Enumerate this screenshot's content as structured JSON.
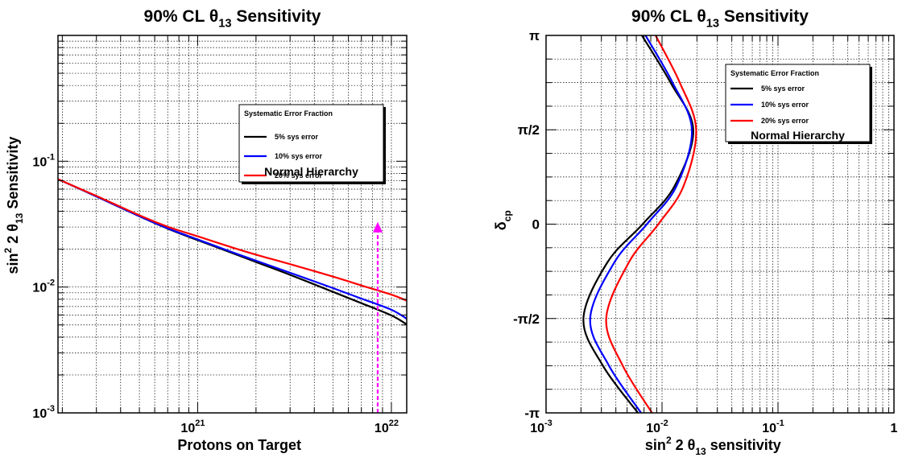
{
  "chart_data": [
    {
      "type": "line",
      "title": "90% CL θ13 Sensitivity",
      "xlabel": "Protons on Target",
      "ylabel": "sin² 2 θ13 Sensitivity",
      "xscale": "log",
      "yscale": "log",
      "xlim": [
        1.9e+20,
        1.2e+22
      ],
      "ylim": [
        0.001,
        1
      ],
      "x_ticks": [
        {
          "value": 1e+21,
          "base": "10",
          "exp": "21"
        },
        {
          "value": 1e+22,
          "base": "10",
          "exp": "22"
        }
      ],
      "y_ticks": [
        {
          "value": 0.001,
          "base": "10",
          "exp": "-3"
        },
        {
          "value": 0.01,
          "base": "10",
          "exp": "-2"
        },
        {
          "value": 0.1,
          "base": "10",
          "exp": "-1"
        }
      ],
      "grid": true,
      "legend_position": "top-right",
      "legend_title": "Systematic Error Fraction",
      "annotation": "Normal Hierarchy",
      "marker_arrow": {
        "x": 8.5e+21,
        "y_from": 0.001,
        "y_to": 0.032,
        "color": "#ff00ff"
      },
      "series": [
        {
          "name": "5% sys error",
          "color": "#000000",
          "points": [
            [
              1.9e+20,
              0.072
            ],
            [
              3e+20,
              0.0525
            ],
            [
              5e+20,
              0.0365
            ],
            [
              7e+20,
              0.0291
            ],
            [
              1e+21,
              0.0236
            ],
            [
              1.5e+21,
              0.0187
            ],
            [
              2e+21,
              0.0158
            ],
            [
              3e+21,
              0.0125
            ],
            [
              5e+21,
              0.00915
            ],
            [
              7e+21,
              0.00745
            ],
            [
              1e+22,
              0.00595
            ],
            [
              1.2e+22,
              0.00505
            ]
          ]
        },
        {
          "name": "10% sys error",
          "color": "#0000ff",
          "points": [
            [
              1.9e+20,
              0.072
            ],
            [
              3e+20,
              0.0525
            ],
            [
              5e+20,
              0.0366
            ],
            [
              7e+20,
              0.0293
            ],
            [
              1e+21,
              0.0239
            ],
            [
              1.5e+21,
              0.019
            ],
            [
              2e+21,
              0.0162
            ],
            [
              3e+21,
              0.013
            ],
            [
              5e+21,
              0.0098
            ],
            [
              7e+21,
              0.0081
            ],
            [
              1e+22,
              0.0066
            ],
            [
              1.2e+22,
              0.0056
            ]
          ]
        },
        {
          "name": "20% sys error",
          "color": "#ff0000",
          "points": [
            [
              1.9e+20,
              0.072
            ],
            [
              3e+20,
              0.053
            ],
            [
              5e+20,
              0.0372
            ],
            [
              7e+20,
              0.0302
            ],
            [
              1e+21,
              0.0253
            ],
            [
              1.5e+21,
              0.0207
            ],
            [
              2e+21,
              0.0181
            ],
            [
              3e+21,
              0.0152
            ],
            [
              5e+21,
              0.0121
            ],
            [
              7e+21,
              0.0103
            ],
            [
              1e+22,
              0.0087
            ],
            [
              1.2e+22,
              0.0078
            ]
          ]
        }
      ]
    },
    {
      "type": "line",
      "title": "90% CL θ13 Sensitivity",
      "xlabel": "sin² 2 θ13 sensitivity",
      "ylabel": "δcp",
      "xscale": "log",
      "xlim": [
        0.001,
        1
      ],
      "ylim": [
        -3.14159,
        3.14159
      ],
      "x_ticks": [
        {
          "value": 0.001,
          "base": "10",
          "exp": "-3"
        },
        {
          "value": 0.01,
          "base": "10",
          "exp": "-2"
        },
        {
          "value": 0.1,
          "base": "10",
          "exp": "-1"
        },
        {
          "value": 1,
          "base": "1",
          "exp": ""
        }
      ],
      "y_ticks": [
        {
          "value": 3.14159,
          "label": "π"
        },
        {
          "value": 1.5708,
          "label": "π/2"
        },
        {
          "value": 0,
          "label": "0"
        },
        {
          "value": -1.5708,
          "label": "-π/2"
        },
        {
          "value": -3.14159,
          "label": "-π"
        }
      ],
      "grid": true,
      "legend_position": "top-right",
      "legend_title": "Systematic Error Fraction",
      "annotation": "Normal Hierarchy",
      "series": [
        {
          "name": "5% sys error",
          "color": "#000000",
          "points": [
            [
              0.0067,
              3.14159
            ],
            [
              0.0118,
              2.36
            ],
            [
              0.0186,
              1.5708
            ],
            [
              0.0128,
              0.63
            ],
            [
              0.0068,
              0
            ],
            [
              0.0034,
              -0.63
            ],
            [
              0.0021,
              -1.5708
            ],
            [
              0.0031,
              -2.36
            ],
            [
              0.0062,
              -3.14159
            ]
          ]
        },
        {
          "name": "10% sys error",
          "color": "#0000ff",
          "points": [
            [
              0.0072,
              3.14159
            ],
            [
              0.0123,
              2.36
            ],
            [
              0.0181,
              1.5708
            ],
            [
              0.0133,
              0.63
            ],
            [
              0.0074,
              0
            ],
            [
              0.0039,
              -0.63
            ],
            [
              0.0024,
              -1.5708
            ],
            [
              0.0035,
              -2.36
            ],
            [
              0.0066,
              -3.14159
            ]
          ]
        },
        {
          "name": "20% sys error",
          "color": "#ff0000",
          "points": [
            [
              0.0088,
              3.14159
            ],
            [
              0.0142,
              2.36
            ],
            [
              0.0197,
              1.5708
            ],
            [
              0.0153,
              0.63
            ],
            [
              0.0093,
              0
            ],
            [
              0.0052,
              -0.63
            ],
            [
              0.0033,
              -1.5708
            ],
            [
              0.0046,
              -2.36
            ],
            [
              0.0082,
              -3.14159
            ]
          ]
        }
      ]
    }
  ]
}
